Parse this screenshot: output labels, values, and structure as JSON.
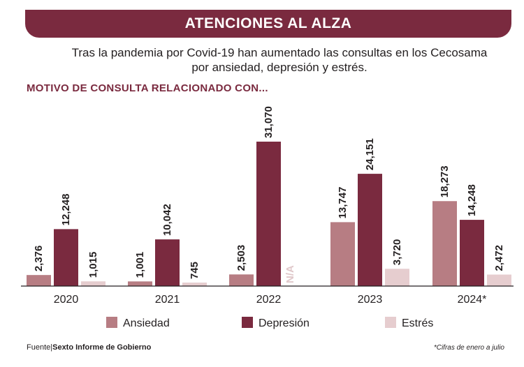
{
  "banner": {
    "title": "ATENCIONES AL ALZA"
  },
  "subtitle": {
    "line1": "Tras la pandemia por Covid-19 han aumentado las consultas en los Cecosama",
    "line2": "por ansiedad, depresión y estrés."
  },
  "section_title": "MOTIVO DE CONSULTA RELACIONADO CON...",
  "footer": {
    "source_prefix": "Fuente|",
    "source_name": "Sexto Informe de Gobierno",
    "note": "*Cifras de enero a julio"
  },
  "colors": {
    "accent": "#7a2a3f",
    "ansiedad": "#b77d83",
    "depresion": "#7a2a3f",
    "estres": "#e6cdcf",
    "na_text": "#e0c8ca"
  },
  "chart_data": {
    "type": "bar",
    "title": "MOTIVO DE CONSULTA RELACIONADO CON...",
    "categories": [
      "2020",
      "2021",
      "2022",
      "2023",
      "2024*"
    ],
    "series": [
      {
        "name": "Ansiedad",
        "values": [
          2376,
          1001,
          2503,
          13747,
          18273
        ],
        "labels": [
          "2,376",
          "1,001",
          "2,503",
          "13,747",
          "18,273"
        ]
      },
      {
        "name": "Depresión",
        "values": [
          12248,
          10042,
          31070,
          24151,
          14248
        ],
        "labels": [
          "12,248",
          "10,042",
          "31,070",
          "24,151",
          "14,248"
        ]
      },
      {
        "name": "Estrés",
        "values": [
          1015,
          745,
          null,
          3720,
          2472
        ],
        "labels": [
          "1,015",
          "745",
          "N/A",
          "3,720",
          "2,472"
        ]
      }
    ],
    "xlabel": "",
    "ylabel": "",
    "ylim": [
      0,
      31070
    ],
    "grid": false,
    "legend": "bottom"
  }
}
